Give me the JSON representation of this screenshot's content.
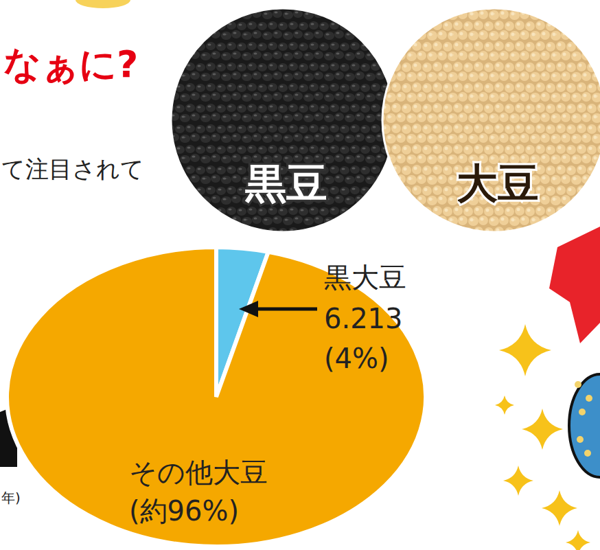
{
  "texts": {
    "heading": "なぁに?",
    "caption": "て注目されて",
    "photo_labels": [
      "黒豆",
      "大豆"
    ],
    "axis_fragment": "年)"
  },
  "chart_data": {
    "type": "pie",
    "categories": [
      "黒大豆",
      "その他大豆"
    ],
    "values": [
      4,
      96
    ],
    "value_labels": [
      "(4%)",
      "(約96%)"
    ],
    "colors": [
      "#5ec6ec",
      "#f5a800"
    ],
    "data_labels": true,
    "annotations": [
      {
        "text": "6.213"
      }
    ]
  }
}
